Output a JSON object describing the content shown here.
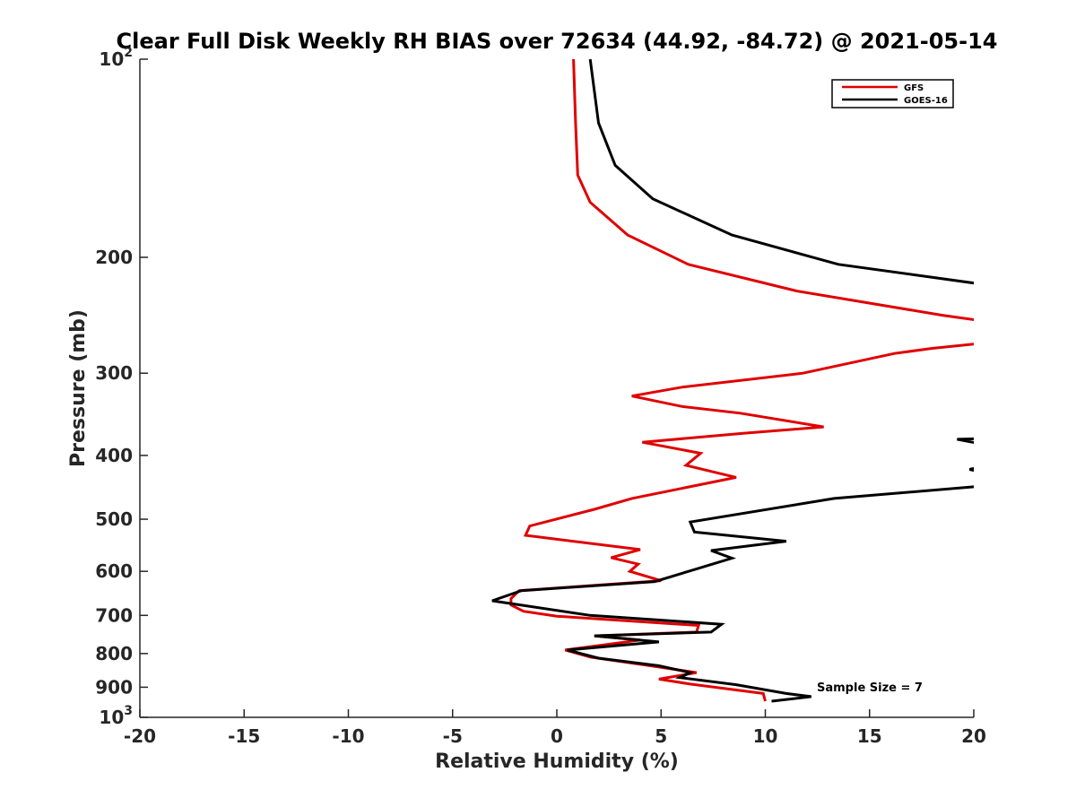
{
  "chart_data": {
    "type": "line",
    "title": "Clear Full Disk Weekly RH BIAS over 72634 (44.92, -84.72) @ 2021-05-14",
    "xlabel": "Relative Humidity (%)",
    "ylabel": "Pressure (mb)",
    "xlim": [
      -20,
      20
    ],
    "ylim": [
      100,
      1000
    ],
    "yscale": "log",
    "y_reversed": true,
    "grid": false,
    "x_ticks": [
      -20,
      -15,
      -10,
      -5,
      0,
      5,
      10,
      15,
      20
    ],
    "x_tick_labels": [
      "-20",
      "-15",
      "-10",
      "-5",
      "0",
      "5",
      "10",
      "15",
      "20"
    ],
    "y_ticks": [
      100,
      200,
      300,
      400,
      500,
      600,
      700,
      800,
      900,
      1000
    ],
    "y_tick_labels": [
      {
        "base": "10",
        "exp": "2"
      },
      {
        "base": "200"
      },
      {
        "base": "300"
      },
      {
        "base": "400"
      },
      {
        "base": "500"
      },
      {
        "base": "600"
      },
      {
        "base": "700"
      },
      {
        "base": "800"
      },
      {
        "base": "900"
      },
      {
        "base": "10",
        "exp": "3"
      }
    ],
    "legend": {
      "position": "top-right",
      "entries": [
        "GFS",
        "GOES-16"
      ]
    },
    "annotation": "Sample Size = 7",
    "series": [
      {
        "name": "GFS",
        "color": "#e00000",
        "points": [
          [
            0.8,
            100
          ],
          [
            0.9,
            125
          ],
          [
            1.0,
            150
          ],
          [
            1.6,
            165
          ],
          [
            3.4,
            185
          ],
          [
            6.3,
            205
          ],
          [
            11.5,
            225
          ],
          [
            18.5,
            245
          ],
          [
            20.5,
            250
          ],
          [
            20.5,
            270
          ],
          [
            18.0,
            275
          ],
          [
            16.2,
            280
          ],
          [
            11.8,
            300
          ],
          [
            6.0,
            315
          ],
          [
            3.6,
            325
          ],
          [
            6.0,
            337
          ],
          [
            8.8,
            345
          ],
          [
            12.8,
            362
          ],
          [
            9.0,
            370
          ],
          [
            4.1,
            382
          ],
          [
            6.9,
            397
          ],
          [
            6.2,
            414
          ],
          [
            8.6,
            432
          ],
          [
            3.6,
            465
          ],
          [
            1.8,
            483
          ],
          [
            -1.3,
            512
          ],
          [
            -1.5,
            529
          ],
          [
            4.0,
            556
          ],
          [
            2.6,
            572
          ],
          [
            3.9,
            585
          ],
          [
            3.5,
            600
          ],
          [
            5.0,
            620
          ],
          [
            -1.8,
            642
          ],
          [
            -2.2,
            660
          ],
          [
            -2.2,
            675
          ],
          [
            -1.6,
            690
          ],
          [
            0.0,
            702
          ],
          [
            6.8,
            725
          ],
          [
            6.7,
            742
          ],
          [
            1.8,
            752
          ],
          [
            4.0,
            763
          ],
          [
            0.4,
            790
          ],
          [
            1.6,
            810
          ],
          [
            4.5,
            835
          ],
          [
            6.7,
            855
          ],
          [
            4.9,
            875
          ],
          [
            6.4,
            890
          ],
          [
            9.9,
            920
          ],
          [
            10.0,
            945
          ]
        ]
      },
      {
        "name": "GOES-16",
        "color": "#000000",
        "points": [
          [
            1.6,
            100
          ],
          [
            2.0,
            125
          ],
          [
            2.8,
            145
          ],
          [
            4.6,
            163
          ],
          [
            8.4,
            185
          ],
          [
            13.5,
            205
          ],
          [
            20.5,
            220
          ],
          [
            20.5,
            377
          ],
          [
            19.2,
            378
          ],
          [
            20.5,
            385
          ],
          [
            20.5,
            415
          ],
          [
            19.8,
            420
          ],
          [
            20.5,
            425
          ],
          [
            20.5,
            445
          ],
          [
            13.3,
            465
          ],
          [
            6.4,
            505
          ],
          [
            6.6,
            523
          ],
          [
            11.0,
            540
          ],
          [
            7.4,
            558
          ],
          [
            8.4,
            573
          ],
          [
            4.7,
            622
          ],
          [
            -1.7,
            642
          ],
          [
            -3.1,
            665
          ],
          [
            1.6,
            700
          ],
          [
            7.9,
            722
          ],
          [
            7.4,
            742
          ],
          [
            1.8,
            752
          ],
          [
            4.9,
            768
          ],
          [
            0.5,
            790
          ],
          [
            2.0,
            813
          ],
          [
            4.9,
            835
          ],
          [
            6.4,
            855
          ],
          [
            5.9,
            870
          ],
          [
            8.6,
            892
          ],
          [
            11.0,
            920
          ],
          [
            12.2,
            930
          ],
          [
            10.3,
            945
          ]
        ]
      }
    ]
  }
}
